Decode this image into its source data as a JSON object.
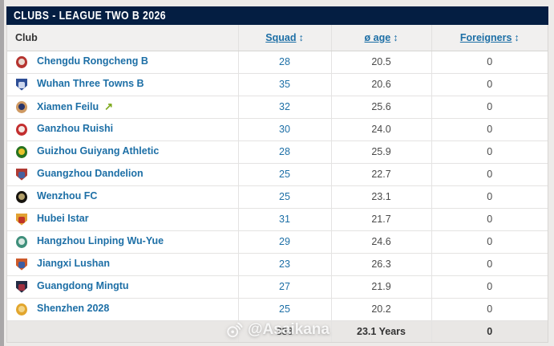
{
  "title": "CLUBS - LEAGUE TWO B 2026",
  "columns": {
    "club": "Club",
    "squad": "Squad",
    "avg_age": "ø age",
    "foreigners": "Foreigners",
    "sort_icon": "↕"
  },
  "icons": {
    "promoted_arrow": "↗",
    "watermark_logo": "weibo-eye-icon"
  },
  "colors": {
    "title_bar_bg": "#041e42",
    "link_blue": "#1d6fa6",
    "promoted_green": "#7ca81b"
  },
  "rows": [
    {
      "club": "Chengdu Rongcheng B",
      "squad": "28",
      "avg_age": "20.5",
      "foreigners": "0",
      "promoted": false,
      "badge": {
        "shape": "circle",
        "outer": "#b5342f",
        "inner": "#e8d9d0"
      }
    },
    {
      "club": "Wuhan Three Towns B",
      "squad": "35",
      "avg_age": "20.6",
      "foreigners": "0",
      "promoted": false,
      "badge": {
        "shape": "shield",
        "outer": "#2d4e96",
        "inner": "#cdd7ee"
      }
    },
    {
      "club": "Xiamen Feilu",
      "squad": "32",
      "avg_age": "25.6",
      "foreigners": "0",
      "promoted": true,
      "badge": {
        "shape": "circle",
        "outer": "#cf9a63",
        "inner": "#28356b"
      }
    },
    {
      "club": "Ganzhou Ruishi",
      "squad": "30",
      "avg_age": "24.0",
      "foreigners": "0",
      "promoted": false,
      "badge": {
        "shape": "circle",
        "outer": "#c32f2f",
        "inner": "#f3e9e4"
      }
    },
    {
      "club": "Guizhou Guiyang Athletic",
      "squad": "28",
      "avg_age": "25.9",
      "foreigners": "0",
      "promoted": false,
      "badge": {
        "shape": "circle",
        "outer": "#27731f",
        "inner": "#e8c22b"
      }
    },
    {
      "club": "Guangzhou Dandelion",
      "squad": "25",
      "avg_age": "22.7",
      "foreigners": "0",
      "promoted": false,
      "badge": {
        "shape": "shield",
        "outer": "#b03a33",
        "inner": "#47619f"
      }
    },
    {
      "club": "Wenzhou FC",
      "squad": "25",
      "avg_age": "23.1",
      "foreigners": "0",
      "promoted": false,
      "badge": {
        "shape": "circle",
        "outer": "#17140f",
        "inner": "#b3a06a"
      }
    },
    {
      "club": "Hubei Istar",
      "squad": "31",
      "avg_age": "21.7",
      "foreigners": "0",
      "promoted": false,
      "badge": {
        "shape": "shield",
        "outer": "#e2a233",
        "inner": "#c03427"
      }
    },
    {
      "club": "Hangzhou Linping Wu-Yue",
      "squad": "29",
      "avg_age": "24.6",
      "foreigners": "0",
      "promoted": false,
      "badge": {
        "shape": "circle",
        "outer": "#3f8f7b",
        "inner": "#d8e8e2"
      }
    },
    {
      "club": "Jiangxi Lushan",
      "squad": "23",
      "avg_age": "26.3",
      "foreigners": "0",
      "promoted": false,
      "badge": {
        "shape": "shield",
        "outer": "#cd5a2a",
        "inner": "#3c5da3"
      }
    },
    {
      "club": "Guangdong Mingtu",
      "squad": "27",
      "avg_age": "21.9",
      "foreigners": "0",
      "promoted": false,
      "badge": {
        "shape": "shield",
        "outer": "#232c44",
        "inner": "#a03040"
      }
    },
    {
      "club": "Shenzhen 2028",
      "squad": "25",
      "avg_age": "20.2",
      "foreigners": "0",
      "promoted": false,
      "badge": {
        "shape": "circle",
        "outer": "#e2a62e",
        "inner": "#f2d488"
      }
    }
  ],
  "footer": {
    "squad_total": "338",
    "avg_age_total": "23.1 Years",
    "foreigners_total": "0"
  },
  "watermark": {
    "text": "@Asaikana"
  }
}
